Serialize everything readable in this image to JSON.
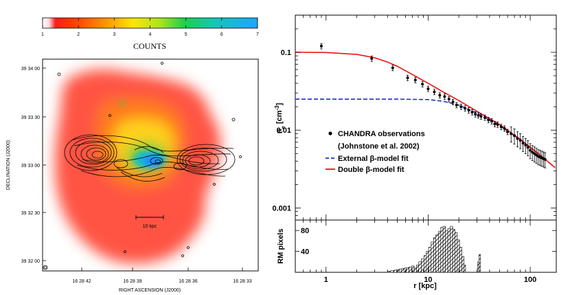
{
  "left_panel": {
    "colorbar": {
      "ticks": [
        "1",
        "2",
        "3",
        "4",
        "5",
        "6",
        "7"
      ],
      "label": "COUNTS"
    },
    "yaxis": {
      "label": "DECLINATION (J2000)",
      "ticks": [
        "39 34 00",
        "39 33 30",
        "39 33 00",
        "39 32 30",
        "39 32 00"
      ]
    },
    "xaxis": {
      "label": "RIGHT ASCENSION (J2000)",
      "ticks": [
        "16 28 42",
        "16 28 39",
        "16 28 36",
        "16 28 33"
      ]
    },
    "scalebar_label": "10 kpc"
  },
  "chart_data": {
    "type": "scatter",
    "title": "",
    "xscale": "log",
    "yscale": "log",
    "xlabel": "r [kpc]",
    "ylabel": "n_e [cm^-3]",
    "xlim": [
      0.5,
      180
    ],
    "ylim": [
      0.0007,
      0.3
    ],
    "x_ticks": [
      "1",
      "10",
      "100"
    ],
    "y_ticks": [
      "0.1",
      "0.01",
      "0.001"
    ],
    "legend_position": "center-left",
    "legend": {
      "points": "CHANDRA observations",
      "points_ref": "(Johnstone et al. 2002)",
      "external": "External β-model fit",
      "double": "Double β-model fit"
    },
    "observations": [
      {
        "x": 0.9,
        "y": 0.12
      },
      {
        "x": 2.8,
        "y": 0.083
      },
      {
        "x": 4.5,
        "y": 0.063
      },
      {
        "x": 6.3,
        "y": 0.047
      },
      {
        "x": 7.5,
        "y": 0.044
      },
      {
        "x": 8.8,
        "y": 0.039
      },
      {
        "x": 10.0,
        "y": 0.034
      },
      {
        "x": 11.5,
        "y": 0.031
      },
      {
        "x": 13.0,
        "y": 0.028
      },
      {
        "x": 14.5,
        "y": 0.027
      },
      {
        "x": 16.0,
        "y": 0.025
      },
      {
        "x": 17.5,
        "y": 0.023
      },
      {
        "x": 19.0,
        "y": 0.021
      },
      {
        "x": 21.0,
        "y": 0.02
      },
      {
        "x": 23.0,
        "y": 0.019
      },
      {
        "x": 25.0,
        "y": 0.018
      },
      {
        "x": 27.0,
        "y": 0.017
      },
      {
        "x": 29.0,
        "y": 0.016
      },
      {
        "x": 31.0,
        "y": 0.0155
      },
      {
        "x": 33.0,
        "y": 0.015
      },
      {
        "x": 36.0,
        "y": 0.0145
      },
      {
        "x": 39.0,
        "y": 0.0135
      },
      {
        "x": 42.0,
        "y": 0.013
      },
      {
        "x": 45.0,
        "y": 0.012
      },
      {
        "x": 48.0,
        "y": 0.0118
      },
      {
        "x": 52.0,
        "y": 0.011
      },
      {
        "x": 56.0,
        "y": 0.0105
      },
      {
        "x": 60.0,
        "y": 0.0095
      },
      {
        "x": 65.0,
        "y": 0.009
      },
      {
        "x": 70.0,
        "y": 0.0085
      },
      {
        "x": 75.0,
        "y": 0.0078
      },
      {
        "x": 80.0,
        "y": 0.0074
      },
      {
        "x": 85.0,
        "y": 0.0068
      },
      {
        "x": 90.0,
        "y": 0.0064
      },
      {
        "x": 95.0,
        "y": 0.006
      },
      {
        "x": 100.0,
        "y": 0.0055
      },
      {
        "x": 105.0,
        "y": 0.0052
      },
      {
        "x": 110.0,
        "y": 0.005
      },
      {
        "x": 115.0,
        "y": 0.0048
      },
      {
        "x": 120.0,
        "y": 0.0046
      },
      {
        "x": 125.0,
        "y": 0.0045
      },
      {
        "x": 130.0,
        "y": 0.0044
      },
      {
        "x": 135.0,
        "y": 0.0043
      },
      {
        "x": 140.0,
        "y": 0.0042
      }
    ],
    "external_fit": [
      {
        "x": 0.5,
        "y": 0.025
      },
      {
        "x": 5,
        "y": 0.025
      },
      {
        "x": 10,
        "y": 0.0247
      },
      {
        "x": 14,
        "y": 0.0235
      },
      {
        "x": 20,
        "y": 0.021
      },
      {
        "x": 30,
        "y": 0.0165
      },
      {
        "x": 50,
        "y": 0.0115
      },
      {
        "x": 80,
        "y": 0.0075
      },
      {
        "x": 120,
        "y": 0.005
      },
      {
        "x": 175,
        "y": 0.0033
      }
    ],
    "double_fit": [
      {
        "x": 0.5,
        "y": 0.1
      },
      {
        "x": 1,
        "y": 0.0995
      },
      {
        "x": 2,
        "y": 0.094
      },
      {
        "x": 3,
        "y": 0.085
      },
      {
        "x": 4,
        "y": 0.075
      },
      {
        "x": 5,
        "y": 0.066
      },
      {
        "x": 6,
        "y": 0.058
      },
      {
        "x": 8,
        "y": 0.047
      },
      {
        "x": 10,
        "y": 0.04
      },
      {
        "x": 14,
        "y": 0.031
      },
      {
        "x": 20,
        "y": 0.024
      },
      {
        "x": 30,
        "y": 0.0175
      },
      {
        "x": 50,
        "y": 0.0118
      },
      {
        "x": 80,
        "y": 0.0076
      },
      {
        "x": 120,
        "y": 0.005
      },
      {
        "x": 175,
        "y": 0.0033
      }
    ],
    "rm_histogram": {
      "ylabel": "RM pixels",
      "y_ticks": [
        "40",
        "80"
      ],
      "ylim": [
        0,
        100
      ],
      "bins": [
        {
          "x": 4.0,
          "v": 2
        },
        {
          "x": 4.3,
          "v": 3
        },
        {
          "x": 4.6,
          "v": 4
        },
        {
          "x": 4.9,
          "v": 5
        },
        {
          "x": 5.2,
          "v": 6
        },
        {
          "x": 5.5,
          "v": 7
        },
        {
          "x": 5.8,
          "v": 8
        },
        {
          "x": 6.1,
          "v": 9
        },
        {
          "x": 6.5,
          "v": 10
        },
        {
          "x": 6.9,
          "v": 12
        },
        {
          "x": 7.3,
          "v": 8
        },
        {
          "x": 7.7,
          "v": 14
        },
        {
          "x": 8.1,
          "v": 20
        },
        {
          "x": 8.6,
          "v": 26
        },
        {
          "x": 9.1,
          "v": 32
        },
        {
          "x": 9.6,
          "v": 40
        },
        {
          "x": 10.1,
          "v": 48
        },
        {
          "x": 10.7,
          "v": 58
        },
        {
          "x": 11.3,
          "v": 66
        },
        {
          "x": 11.9,
          "v": 72
        },
        {
          "x": 12.6,
          "v": 78
        },
        {
          "x": 13.3,
          "v": 86
        },
        {
          "x": 14.0,
          "v": 88
        },
        {
          "x": 14.8,
          "v": 80
        },
        {
          "x": 15.6,
          "v": 84
        },
        {
          "x": 16.5,
          "v": 88
        },
        {
          "x": 17.4,
          "v": 82
        },
        {
          "x": 18.3,
          "v": 76
        },
        {
          "x": 19.3,
          "v": 62
        },
        {
          "x": 20.3,
          "v": 48
        },
        {
          "x": 21.4,
          "v": 30
        },
        {
          "x": 22.5,
          "v": 14
        },
        {
          "x": 30.5,
          "v": 20
        },
        {
          "x": 31.5,
          "v": 34
        }
      ]
    }
  }
}
